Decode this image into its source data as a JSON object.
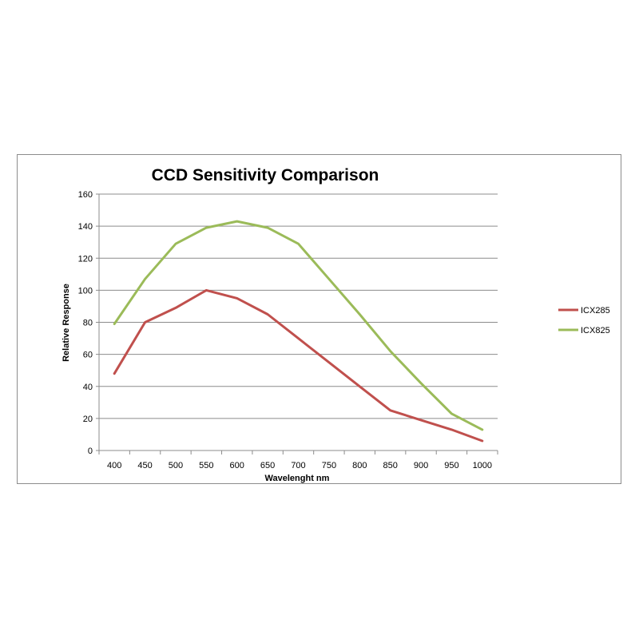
{
  "chart_data": {
    "type": "line",
    "title": "CCD Sensitivity Comparison",
    "xlabel": "Wavelenght nm",
    "ylabel": "Relative Response",
    "ylim": [
      0,
      160
    ],
    "yticks": [
      0,
      20,
      40,
      60,
      80,
      100,
      120,
      140,
      160
    ],
    "categories": [
      "400",
      "450",
      "500",
      "550",
      "600",
      "650",
      "700",
      "750",
      "800",
      "850",
      "900",
      "950",
      "1000"
    ],
    "grid": true,
    "legend_position": "right",
    "series": [
      {
        "name": "ICX285",
        "color": "#c0504d",
        "values": [
          48,
          80,
          89,
          100,
          95,
          85,
          70,
          55,
          40,
          25,
          19,
          13,
          6
        ]
      },
      {
        "name": "ICX825",
        "color": "#9bbb59",
        "values": [
          79,
          107,
          129,
          139,
          143,
          139,
          129,
          107,
          85,
          62,
          42,
          23,
          13
        ]
      }
    ]
  }
}
